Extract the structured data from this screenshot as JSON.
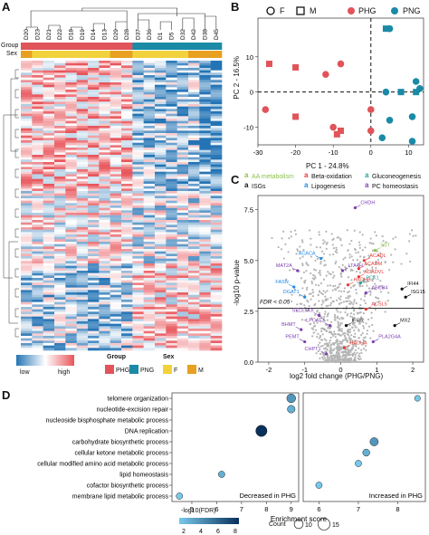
{
  "panels": {
    "A": "A",
    "B": "B",
    "C": "C",
    "D": "D"
  },
  "heatmap": {
    "samples": [
      "D20",
      "D23",
      "D21",
      "D22",
      "D18",
      "D19",
      "D14",
      "D13",
      "D29",
      "D28",
      "D37",
      "D36",
      "D1",
      "D5",
      "D32",
      "D42",
      "D38",
      "D45"
    ],
    "row_labels": {
      "group": "Group",
      "sex": "Sex"
    },
    "sample_group": [
      "PHG",
      "PHG",
      "PHG",
      "PHG",
      "PHG",
      "PHG",
      "PHG",
      "PHG",
      "PHG",
      "PHG",
      "PNG",
      "PNG",
      "PNG",
      "PNG",
      "PNG",
      "PNG",
      "PNG",
      "PNG"
    ],
    "sample_sex": [
      "M",
      "F",
      "F",
      "F",
      "F",
      "F",
      "F",
      "F",
      "M",
      "M",
      "F",
      "F",
      "F",
      "F",
      "F",
      "M",
      "M",
      "M"
    ],
    "scale_low": "low",
    "scale_high": "high",
    "legend_group_title": "Group",
    "legend_sex_title": "Sex",
    "legend_group": [
      {
        "label": "PHG",
        "color": "#e0545a"
      },
      {
        "label": "PNG",
        "color": "#1a8aa6"
      }
    ],
    "legend_sex": [
      {
        "label": "F",
        "color": "#f2d23c"
      },
      {
        "label": "M",
        "color": "#e8a020"
      }
    ],
    "colors": {
      "low": "#2474b5",
      "mid": "#ffffff",
      "high": "#e8555b"
    }
  },
  "pca": {
    "legend_shape": [
      {
        "label": "F",
        "shape": "circle"
      },
      {
        "label": "M",
        "shape": "square"
      }
    ],
    "legend_group": [
      {
        "label": "PHG",
        "color": "#e0545a"
      },
      {
        "label": "PNG",
        "color": "#1a8aa6"
      }
    ],
    "chart_data": {
      "type": "scatter",
      "xlabel": "PC 1 - 24.8%",
      "ylabel": "PC 2 - 16.5%",
      "xlim": [
        -30,
        14
      ],
      "ylim": [
        -15,
        21
      ],
      "xticks": [
        -30,
        -20,
        -10,
        0,
        10
      ],
      "yticks": [
        -10,
        0,
        10
      ],
      "points": [
        {
          "x": -27,
          "y": 8,
          "group": "PHG",
          "sex": "M"
        },
        {
          "x": -20,
          "y": 7,
          "group": "PHG",
          "sex": "M"
        },
        {
          "x": -12,
          "y": 5,
          "group": "PHG",
          "sex": "F"
        },
        {
          "x": -8,
          "y": 8,
          "group": "PHG",
          "sex": "F"
        },
        {
          "x": -28,
          "y": -5,
          "group": "PHG",
          "sex": "F"
        },
        {
          "x": -20,
          "y": -7,
          "group": "PHG",
          "sex": "M"
        },
        {
          "x": -10,
          "y": -10,
          "group": "PHG",
          "sex": "F"
        },
        {
          "x": -8,
          "y": -11,
          "group": "PHG",
          "sex": "M"
        },
        {
          "x": -9,
          "y": -12,
          "group": "PHG",
          "sex": "M"
        },
        {
          "x": 0,
          "y": -5,
          "group": "PHG",
          "sex": "F"
        },
        {
          "x": 0,
          "y": -11,
          "group": "PHG",
          "sex": "F"
        },
        {
          "x": 4,
          "y": 18,
          "group": "PNG",
          "sex": "M"
        },
        {
          "x": 5,
          "y": 18,
          "group": "PNG",
          "sex": "F"
        },
        {
          "x": 4,
          "y": 0,
          "group": "PNG",
          "sex": "F"
        },
        {
          "x": 8,
          "y": 0,
          "group": "PNG",
          "sex": "M"
        },
        {
          "x": 12,
          "y": 0,
          "group": "PNG",
          "sex": "M"
        },
        {
          "x": 12,
          "y": 3,
          "group": "PNG",
          "sex": "F"
        },
        {
          "x": 13,
          "y": 1,
          "group": "PNG",
          "sex": "F"
        },
        {
          "x": 5,
          "y": -8,
          "group": "PNG",
          "sex": "F"
        },
        {
          "x": 11,
          "y": -7,
          "group": "PNG",
          "sex": "F"
        },
        {
          "x": 3,
          "y": -13,
          "group": "PNG",
          "sex": "F"
        },
        {
          "x": 11,
          "y": -14,
          "group": "PNG",
          "sex": "F"
        }
      ]
    }
  },
  "volcano": {
    "legend": [
      {
        "label": "AA metabolism",
        "color": "#8bc34a"
      },
      {
        "label": "Beta-oxidation",
        "color": "#e53935"
      },
      {
        "label": "Gluconeogenesis",
        "color": "#26a69a"
      },
      {
        "label": "ISGs",
        "color": "#111111"
      },
      {
        "label": "Lipogenesis",
        "color": "#1e88e5"
      },
      {
        "label": "PC homeostasis",
        "color": "#7b3fb0"
      }
    ],
    "fdr_label": "FDR < 0.05",
    "chart_data": {
      "type": "scatter",
      "xlabel": "log2 fold change (PHG/PNG)",
      "ylabel": "-log10 p-value",
      "xlim": [
        -2.3,
        2.3
      ],
      "ylim": [
        0,
        8.2
      ],
      "xticks": [
        -2,
        -1,
        0,
        1,
        2
      ],
      "yticks": [
        0.0,
        2.5,
        5.0,
        7.5
      ],
      "threshold_y": 2.65,
      "labeled_genes": [
        {
          "label": "CHDH",
          "x": 0.4,
          "y": 7.6,
          "category": "PC homeostasis"
        },
        {
          "label": "SST",
          "x": 0.95,
          "y": 5.5,
          "category": "AA metabolism"
        },
        {
          "label": "ACADL",
          "x": 0.65,
          "y": 5.0,
          "category": "Beta-oxidation"
        },
        {
          "label": "ACACA",
          "x": -0.55,
          "y": 5.1,
          "category": "Lipogenesis"
        },
        {
          "label": "ACADM",
          "x": 0.5,
          "y": 4.6,
          "category": "Beta-oxidation"
        },
        {
          "label": "LTA4H",
          "x": 0.05,
          "y": 4.5,
          "category": "PC homeostasis"
        },
        {
          "label": "MAT2A",
          "x": -1.2,
          "y": 4.5,
          "category": "PC homeostasis"
        },
        {
          "label": "ACADVL",
          "x": 0.5,
          "y": 4.2,
          "category": "Beta-oxidation"
        },
        {
          "label": "FASN",
          "x": -1.3,
          "y": 3.7,
          "category": "Lipogenesis"
        },
        {
          "label": "HADHB",
          "x": 0.2,
          "y": 3.8,
          "category": "Beta-oxidation"
        },
        {
          "label": "PCK1",
          "x": 0.55,
          "y": 3.9,
          "category": "Gluconeogenesis"
        },
        {
          "label": "ABCB4",
          "x": 0.7,
          "y": 3.4,
          "category": "PC homeostasis"
        },
        {
          "label": "DGAT1",
          "x": -1.0,
          "y": 3.2,
          "category": "Lipogenesis"
        },
        {
          "label": "IFI44",
          "x": 1.7,
          "y": 3.6,
          "category": "ISGs"
        },
        {
          "label": "ISG15",
          "x": 1.8,
          "y": 3.2,
          "category": "ISGs"
        },
        {
          "label": "ACSL5",
          "x": 0.7,
          "y": 2.6,
          "category": "Beta-oxidation"
        },
        {
          "label": "SELENOI",
          "x": -0.6,
          "y": 2.3,
          "category": "PC homeostasis"
        },
        {
          "label": "LPCAT3",
          "x": -0.3,
          "y": 1.8,
          "category": "PC homeostasis"
        },
        {
          "label": "IFI35",
          "x": 0.15,
          "y": 1.8,
          "category": "ISGs"
        },
        {
          "label": "MX2",
          "x": 1.5,
          "y": 1.8,
          "category": "ISGs"
        },
        {
          "label": "BHMT",
          "x": -1.1,
          "y": 1.6,
          "category": "PC homeostasis"
        },
        {
          "label": "PEMT",
          "x": -1.0,
          "y": 1.0,
          "category": "PC homeostasis"
        },
        {
          "label": "PLA2G4A",
          "x": 0.9,
          "y": 1.0,
          "category": "PC homeostasis"
        },
        {
          "label": "HADHA",
          "x": 0.1,
          "y": 0.7,
          "category": "Beta-oxidation"
        },
        {
          "label": "CHPT1",
          "x": -0.4,
          "y": 0.4,
          "category": "PC homeostasis"
        }
      ]
    }
  },
  "enrichment": {
    "panel_left_label": "Decreased in PHG",
    "panel_right_label": "Increased in PHG",
    "xlabel": "Enrichment score",
    "fdr_title": "-log10(FDR)",
    "fdr_ticks": [
      "2",
      "4",
      "6",
      "8"
    ],
    "count_title": "Count",
    "count_values": [
      "10",
      "15"
    ],
    "chart_data": {
      "type": "scatter",
      "categories": [
        "telomere organization",
        "nucleotide-excision repair",
        "nucleoside bisphosphate metabolic process",
        "DNA replication",
        "carbohydrate biosynthetic process",
        "cellular ketone metabolic process",
        "cellular modified amino acid metabolic process",
        "lipid homeostasis",
        "cofactor biosynthetic process",
        "membrane lipid metabolic process"
      ],
      "series": [
        {
          "name": "Decreased in PHG",
          "xlim": [
            4.2,
            9.3
          ],
          "xticks": [
            5,
            6,
            7,
            8,
            9
          ],
          "points": [
            {
              "category": "telomere organization",
              "x": 9.0,
              "fdr": 4,
              "count": 10
            },
            {
              "category": "nucleotide-excision repair",
              "x": 9.0,
              "fdr": 3,
              "count": 8
            },
            {
              "category": "DNA replication",
              "x": 7.8,
              "fdr": 8,
              "count": 14
            },
            {
              "category": "lipid homeostasis",
              "x": 6.2,
              "fdr": 3,
              "count": 6
            },
            {
              "category": "membrane lipid metabolic process",
              "x": 4.5,
              "fdr": 2,
              "count": 6
            }
          ]
        },
        {
          "name": "Increased in PHG",
          "xlim": [
            5.6,
            8.7
          ],
          "xticks": [
            6,
            7,
            8
          ],
          "points": [
            {
              "category": "telomere organization",
              "x": 8.5,
              "fdr": 2,
              "count": 5
            },
            {
              "category": "carbohydrate biosynthetic process",
              "x": 7.4,
              "fdr": 4,
              "count": 9
            },
            {
              "category": "cellular ketone metabolic process",
              "x": 7.2,
              "fdr": 3,
              "count": 7
            },
            {
              "category": "cellular modified amino acid metabolic process",
              "x": 7.0,
              "fdr": 2,
              "count": 6
            },
            {
              "category": "cofactor biosynthetic process",
              "x": 6.0,
              "fdr": 2,
              "count": 6
            }
          ]
        }
      ]
    }
  }
}
